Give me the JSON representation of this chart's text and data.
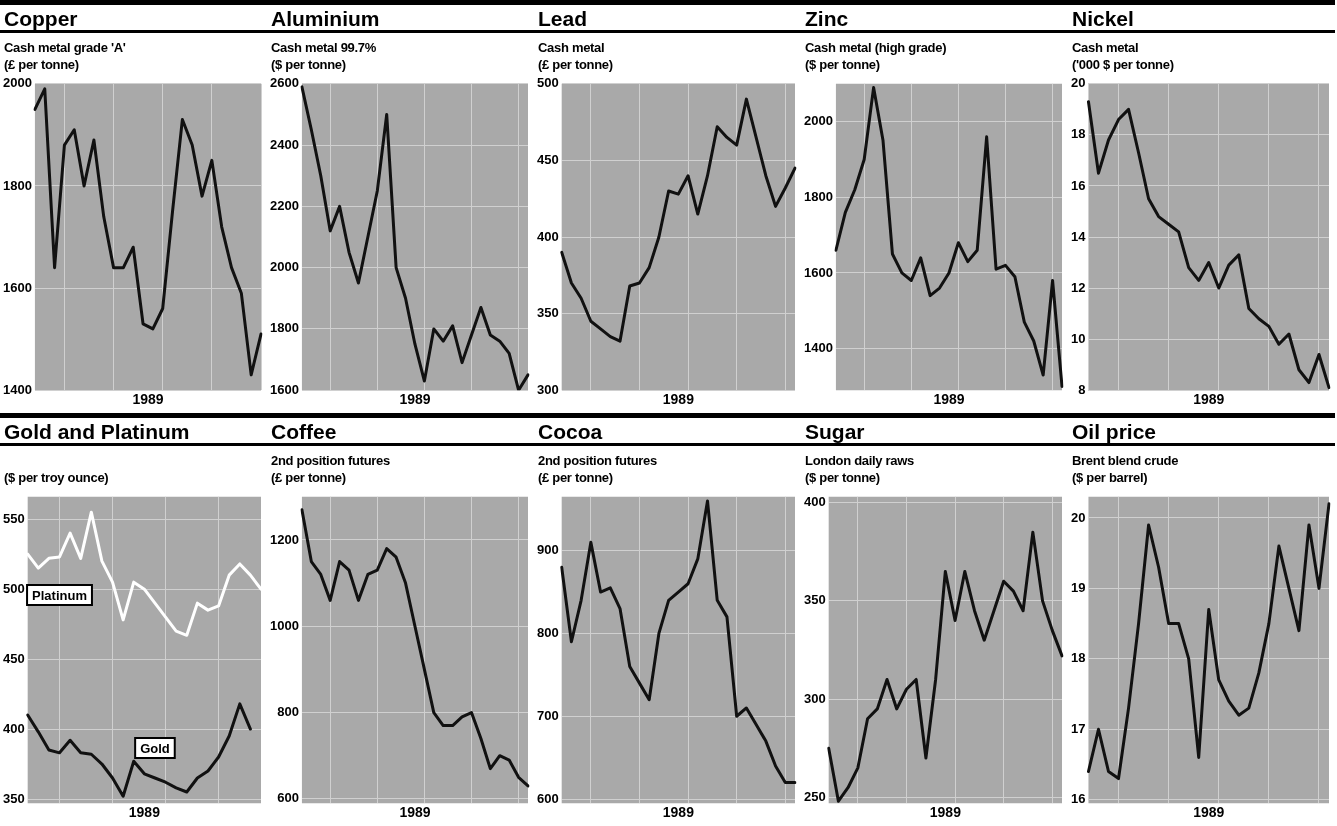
{
  "chart_data": [
    {
      "type": "line",
      "title": "Copper",
      "subtitle": "Cash metal grade 'A'",
      "ylabel": "(£ per tonne)",
      "xlabel": "1989",
      "grid": true,
      "tick_labels": "y",
      "legend": false,
      "categories": [
        null,
        null,
        null,
        null,
        null,
        null,
        null,
        null,
        null,
        null,
        null,
        null,
        null,
        null,
        null,
        null,
        null,
        null,
        null,
        null,
        null,
        null,
        null,
        null
      ],
      "series": [
        {
          "color": "#111111",
          "values": [
            1950,
            1990,
            1640,
            1880,
            1910,
            1800,
            1890,
            1740,
            1640,
            1640,
            1680,
            1530,
            1520,
            1560,
            1750,
            1930,
            1880,
            1780,
            1850,
            1720,
            1640,
            1590,
            1430,
            1510
          ]
        }
      ],
      "ylim": [
        1400,
        2000
      ],
      "yticks": [
        1400,
        1600,
        1800,
        2000
      ]
    },
    {
      "type": "line",
      "title": "Aluminium",
      "subtitle": "Cash metal 99.7%",
      "ylabel": "($ per tonne)",
      "xlabel": "1989",
      "grid": true,
      "tick_labels": "y",
      "legend": false,
      "categories": [
        null,
        null,
        null,
        null,
        null,
        null,
        null,
        null,
        null,
        null,
        null,
        null,
        null,
        null,
        null,
        null,
        null,
        null,
        null,
        null,
        null,
        null,
        null,
        null,
        null
      ],
      "series": [
        {
          "color": "#111111",
          "values": [
            2590,
            2450,
            2300,
            2120,
            2200,
            2050,
            1950,
            2100,
            2250,
            2500,
            2000,
            1900,
            1750,
            1630,
            1800,
            1760,
            1810,
            1690,
            1780,
            1870,
            1780,
            1760,
            1720,
            1600,
            1650
          ]
        }
      ],
      "ylim": [
        1600,
        2600
      ],
      "yticks": [
        1600,
        1800,
        2000,
        2200,
        2400,
        2600
      ]
    },
    {
      "type": "line",
      "title": "Lead",
      "subtitle": "Cash metal",
      "ylabel": "(£ per tonne)",
      "xlabel": "1989",
      "grid": true,
      "tick_labels": "y",
      "legend": false,
      "categories": [
        null,
        null,
        null,
        null,
        null,
        null,
        null,
        null,
        null,
        null,
        null,
        null,
        null,
        null,
        null,
        null,
        null,
        null,
        null,
        null,
        null,
        null,
        null,
        null,
        null
      ],
      "series": [
        {
          "color": "#111111",
          "values": [
            390,
            370,
            360,
            345,
            340,
            335,
            332,
            368,
            370,
            380,
            400,
            430,
            428,
            440,
            415,
            440,
            472,
            465,
            460,
            490,
            465,
            440,
            420,
            432,
            445
          ]
        }
      ],
      "ylim": [
        300,
        500
      ],
      "yticks": [
        300,
        350,
        400,
        450,
        500
      ]
    },
    {
      "type": "line",
      "title": "Zinc",
      "subtitle": "Cash metal (high grade)",
      "ylabel": "($ per tonne)",
      "xlabel": "1989",
      "grid": true,
      "tick_labels": "y",
      "legend": false,
      "categories": [
        null,
        null,
        null,
        null,
        null,
        null,
        null,
        null,
        null,
        null,
        null,
        null,
        null,
        null,
        null,
        null,
        null,
        null,
        null,
        null,
        null,
        null,
        null,
        null,
        null
      ],
      "series": [
        {
          "color": "#111111",
          "values": [
            1660,
            1760,
            1820,
            1900,
            2090,
            1950,
            1650,
            1600,
            1580,
            1640,
            1540,
            1560,
            1600,
            1680,
            1630,
            1660,
            1960,
            1610,
            1620,
            1590,
            1470,
            1420,
            1330,
            1580,
            1300
          ]
        }
      ],
      "ylim": [
        1290,
        2100
      ],
      "yticks": [
        1400,
        1600,
        1800,
        2000
      ]
    },
    {
      "type": "line",
      "title": "Nickel",
      "subtitle": "Cash metal",
      "ylabel": "('000 $ per tonne)",
      "xlabel": "1989",
      "grid": true,
      "tick_labels": "y",
      "legend": false,
      "categories": [
        null,
        null,
        null,
        null,
        null,
        null,
        null,
        null,
        null,
        null,
        null,
        null,
        null,
        null,
        null,
        null,
        null,
        null,
        null,
        null,
        null,
        null,
        null,
        null,
        null
      ],
      "series": [
        {
          "color": "#111111",
          "values": [
            19.3,
            16.5,
            17.8,
            18.6,
            19.0,
            17.3,
            15.5,
            14.8,
            14.5,
            14.2,
            12.8,
            12.3,
            13.0,
            12.0,
            12.9,
            13.3,
            11.2,
            10.8,
            10.5,
            9.8,
            10.2,
            8.8,
            8.3,
            9.4,
            8.1
          ]
        }
      ],
      "ylim": [
        8,
        20
      ],
      "yticks": [
        8,
        10,
        12,
        14,
        16,
        18,
        20
      ]
    },
    {
      "type": "line",
      "title": "Gold and Platinum",
      "ylabel": "($ per troy ounce)",
      "xlabel": "1989",
      "grid": true,
      "tick_labels": "y",
      "legend": false,
      "categories": [
        null,
        null,
        null,
        null,
        null,
        null,
        null,
        null,
        null,
        null,
        null,
        null,
        null,
        null,
        null,
        null,
        null,
        null,
        null,
        null,
        null,
        null,
        null
      ],
      "series": [
        {
          "name": "Platinum",
          "color": "#ffffff",
          "values": [
            525,
            515,
            522,
            523,
            540,
            522,
            555,
            520,
            505,
            478,
            505,
            500,
            490,
            480,
            470,
            467,
            490,
            485,
            488,
            510,
            518,
            510,
            500
          ]
        },
        {
          "name": "Gold",
          "color": "#111111",
          "values": [
            410,
            398,
            385,
            383,
            392,
            383,
            382,
            375,
            365,
            352,
            377,
            368,
            365,
            362,
            358,
            355,
            365,
            370,
            380,
            395,
            418,
            400,
            null
          ]
        }
      ],
      "ylim": [
        347,
        566
      ],
      "yticks": [
        350,
        400,
        450,
        500,
        550
      ]
    },
    {
      "type": "line",
      "title": "Coffee",
      "subtitle": "2nd position futures",
      "ylabel": "(£ per tonne)",
      "xlabel": "1989",
      "grid": true,
      "tick_labels": "y",
      "legend": false,
      "categories": [
        null,
        null,
        null,
        null,
        null,
        null,
        null,
        null,
        null,
        null,
        null,
        null,
        null,
        null,
        null,
        null,
        null,
        null,
        null,
        null,
        null,
        null,
        null,
        null,
        null
      ],
      "series": [
        {
          "color": "#111111",
          "values": [
            1270,
            1150,
            1120,
            1060,
            1150,
            1130,
            1060,
            1120,
            1130,
            1180,
            1160,
            1100,
            1000,
            900,
            800,
            770,
            770,
            790,
            800,
            740,
            670,
            700,
            690,
            650,
            630
          ]
        }
      ],
      "ylim": [
        590,
        1300
      ],
      "yticks": [
        600,
        800,
        1000,
        1200
      ]
    },
    {
      "type": "line",
      "title": "Cocoa",
      "subtitle": "2nd position futures",
      "ylabel": "(£ per tonne)",
      "xlabel": "1989",
      "grid": true,
      "tick_labels": "y",
      "legend": false,
      "categories": [
        null,
        null,
        null,
        null,
        null,
        null,
        null,
        null,
        null,
        null,
        null,
        null,
        null,
        null,
        null,
        null,
        null,
        null,
        null,
        null,
        null,
        null,
        null,
        null,
        null
      ],
      "series": [
        {
          "color": "#111111",
          "values": [
            880,
            790,
            840,
            910,
            850,
            855,
            830,
            760,
            740,
            720,
            800,
            840,
            850,
            860,
            890,
            960,
            840,
            820,
            700,
            710,
            690,
            670,
            640,
            620,
            620
          ]
        }
      ],
      "ylim": [
        595,
        965
      ],
      "yticks": [
        600,
        700,
        800,
        900
      ]
    },
    {
      "type": "line",
      "title": "Sugar",
      "subtitle": "London daily raws",
      "ylabel": "($ per tonne)",
      "xlabel": "1989",
      "grid": true,
      "tick_labels": "y",
      "legend": false,
      "categories": [
        null,
        null,
        null,
        null,
        null,
        null,
        null,
        null,
        null,
        null,
        null,
        null,
        null,
        null,
        null,
        null,
        null,
        null,
        null,
        null,
        null,
        null,
        null,
        null,
        null
      ],
      "series": [
        {
          "color": "#111111",
          "values": [
            275,
            248,
            255,
            265,
            290,
            295,
            310,
            295,
            305,
            310,
            270,
            310,
            365,
            340,
            365,
            345,
            330,
            345,
            360,
            355,
            345,
            385,
            350,
            335,
            322
          ]
        }
      ],
      "ylim": [
        247,
        403
      ],
      "yticks": [
        250,
        300,
        350,
        400
      ]
    },
    {
      "type": "line",
      "title": "Oil price",
      "subtitle": "Brent blend crude",
      "ylabel": "($ per barrel)",
      "xlabel": "1989",
      "grid": true,
      "tick_labels": "y",
      "legend": false,
      "categories": [
        null,
        null,
        null,
        null,
        null,
        null,
        null,
        null,
        null,
        null,
        null,
        null,
        null,
        null,
        null,
        null,
        null,
        null,
        null,
        null,
        null,
        null,
        null,
        null,
        null
      ],
      "series": [
        {
          "color": "#111111",
          "values": [
            16.4,
            17.0,
            16.4,
            16.3,
            17.3,
            18.5,
            19.9,
            19.3,
            18.5,
            18.5,
            18.0,
            16.6,
            18.7,
            17.7,
            17.4,
            17.2,
            17.3,
            17.8,
            18.5,
            19.6,
            19.0,
            18.4,
            19.9,
            19.0,
            20.2
          ]
        }
      ],
      "ylim": [
        15.95,
        20.3
      ],
      "yticks": [
        16,
        17,
        18,
        19,
        20
      ]
    }
  ]
}
